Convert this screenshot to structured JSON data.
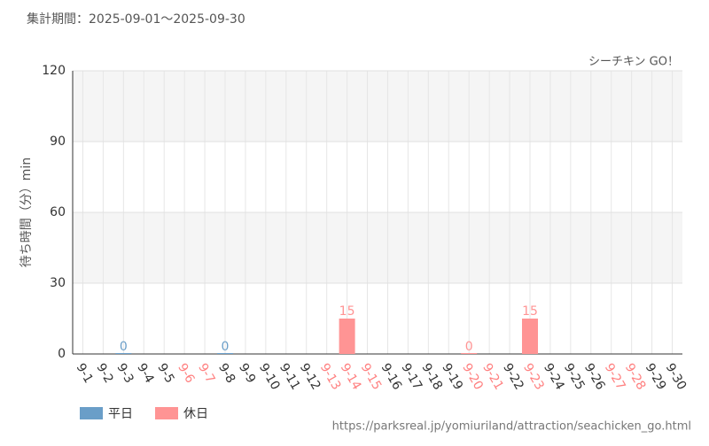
{
  "chart_data": {
    "type": "bar",
    "title": "集計期間：2025-09-01～2025-09-30",
    "annotation": "シーチキン GO！",
    "y_label": "待ち時間（分）min",
    "source": "https://parksreal.jp/yomiuriland/attraction/seachicken_go.html",
    "categories": [
      "9-1",
      "9-2",
      "9-3",
      "9-4",
      "9-5",
      "9-6",
      "9-7",
      "9-8",
      "9-9",
      "9-10",
      "9-11",
      "9-12",
      "9-13",
      "9-14",
      "9-15",
      "9-16",
      "9-17",
      "9-18",
      "9-19",
      "9-20",
      "9-21",
      "9-22",
      "9-23",
      "9-24",
      "9-25",
      "9-26",
      "9-27",
      "9-28",
      "9-29",
      "9-30"
    ],
    "category_colors": [
      "#333333",
      "#333333",
      "#333333",
      "#333333",
      "#333333",
      "#ff8080",
      "#ff8080",
      "#333333",
      "#333333",
      "#333333",
      "#333333",
      "#333333",
      "#ff8080",
      "#ff8080",
      "#ff8080",
      "#333333",
      "#333333",
      "#333333",
      "#333333",
      "#ff8080",
      "#ff8080",
      "#333333",
      "#ff8080",
      "#333333",
      "#333333",
      "#333333",
      "#ff8080",
      "#ff8080",
      "#333333",
      "#333333"
    ],
    "series": [
      {
        "name": "平日",
        "color": "#6a9ec8",
        "values": [
          null,
          null,
          0,
          null,
          null,
          null,
          null,
          0,
          null,
          null,
          null,
          null,
          null,
          null,
          null,
          null,
          null,
          null,
          null,
          null,
          null,
          null,
          null,
          null,
          null,
          null,
          null,
          null,
          null,
          null
        ]
      },
      {
        "name": "休日",
        "color": "#ff9494",
        "values": [
          null,
          null,
          null,
          null,
          null,
          null,
          null,
          null,
          null,
          null,
          null,
          null,
          null,
          15,
          null,
          null,
          null,
          null,
          null,
          0,
          null,
          null,
          15,
          null,
          null,
          null,
          null,
          null,
          null,
          null
        ]
      }
    ],
    "ylim": [
      0,
      120
    ],
    "yticks": [
      0,
      30,
      60,
      90,
      120
    ],
    "grid": true
  }
}
